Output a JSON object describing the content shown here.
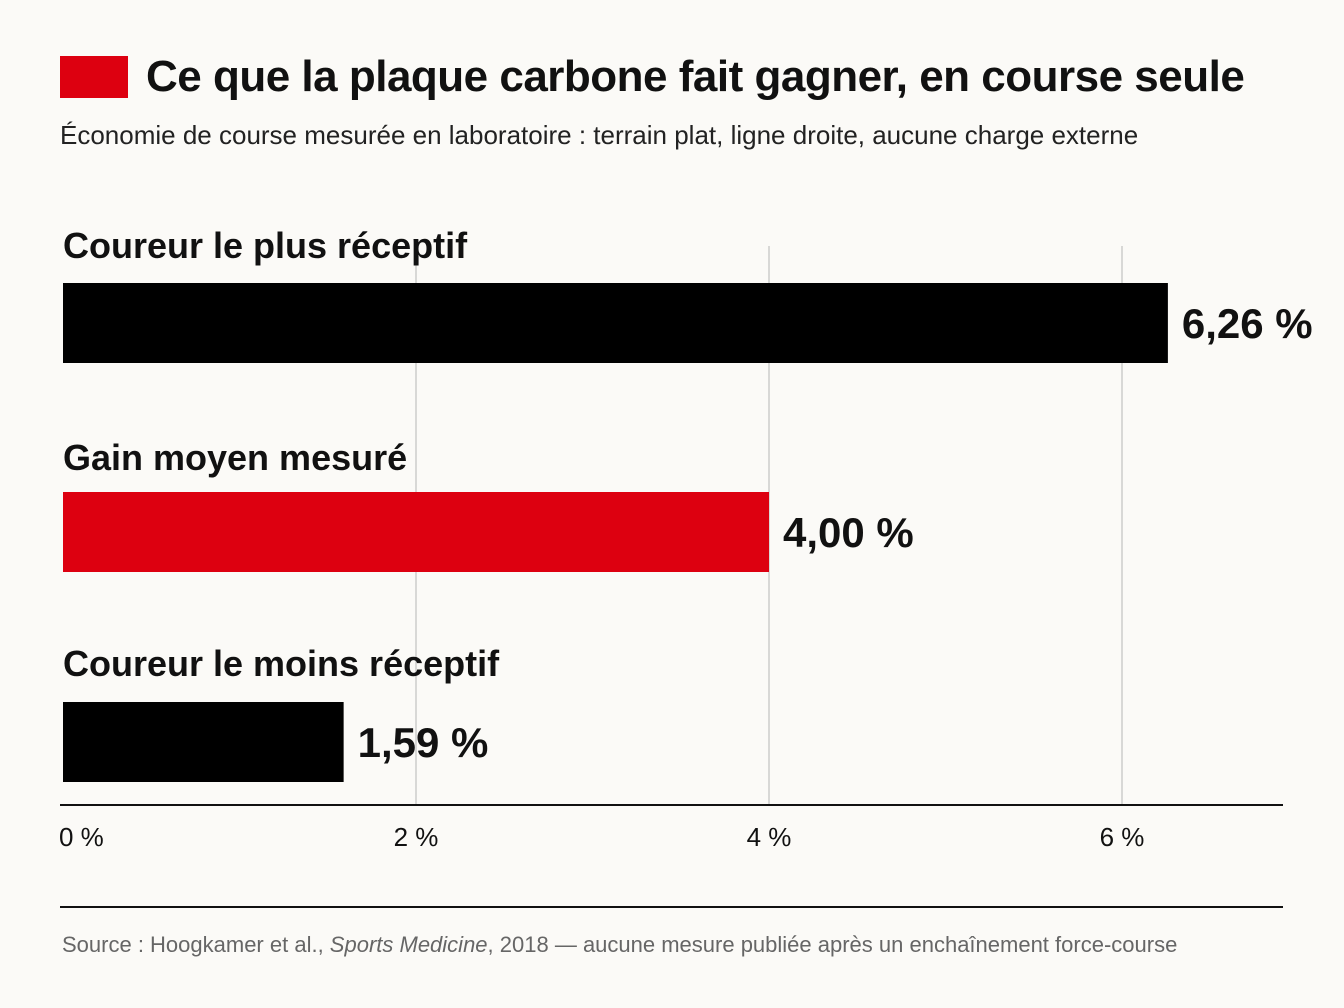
{
  "colors": {
    "accent": "#dd0010",
    "bar_default": "#000000",
    "grid": "#cccccc",
    "text_muted": "#666666"
  },
  "title": "Ce que la plaque carbone fait gagner, en course seule",
  "subtitle": "Économie de course mesurée en laboratoire : terrain plat, ligne droite, aucune charge externe",
  "source": {
    "prefix": "Source : Hoogkamer et al., ",
    "journal": "Sports Medicine",
    "suffix": ", 2018 — aucune mesure publiée après un enchaînement force-course"
  },
  "chart_data": {
    "type": "bar",
    "orientation": "horizontal",
    "categories": [
      "Coureur le plus réceptif",
      "Gain moyen mesuré",
      "Coureur le moins réceptif"
    ],
    "values": [
      6.26,
      4.0,
      1.59
    ],
    "value_labels": [
      "6,26 %",
      "4,00 %",
      "1,59 %"
    ],
    "highlight_index": 1,
    "xlim": [
      0,
      7
    ],
    "xticks": [
      0,
      2,
      4,
      6
    ],
    "xtick_labels": [
      "0 %",
      "2 %",
      "4 %",
      "6 %"
    ],
    "grid": true
  }
}
